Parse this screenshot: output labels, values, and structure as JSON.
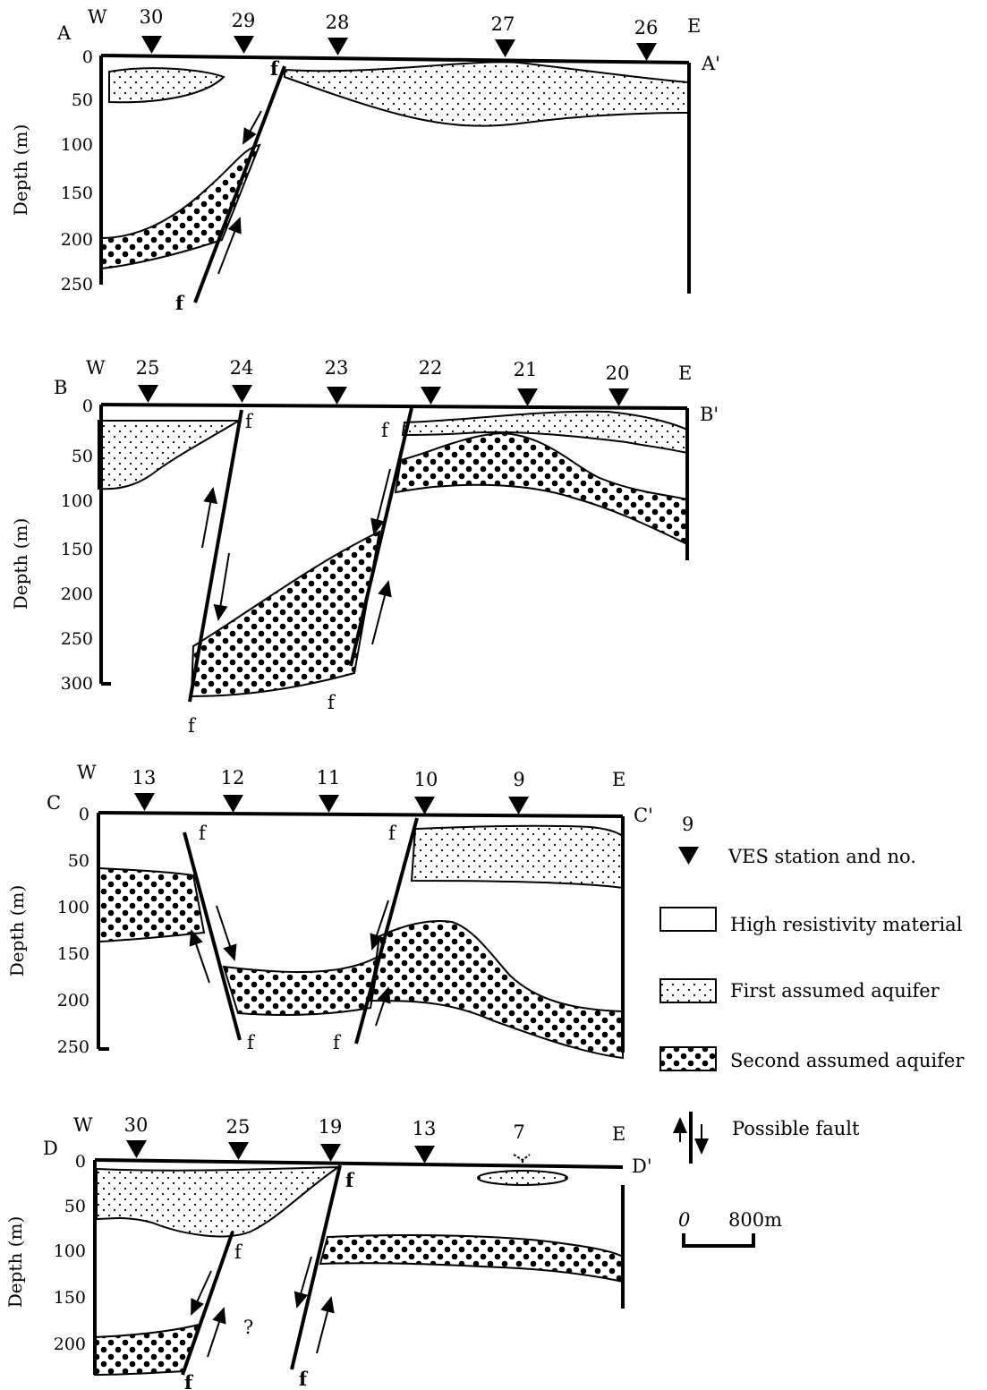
{
  "axis_title": "Depth (m)",
  "panels": {
    "A": {
      "start_label": "A",
      "end_label": "A'",
      "west_label": "W",
      "east_label": "E",
      "stations": [
        "30",
        "29",
        "28",
        "27",
        "26"
      ],
      "depth_ticks": [
        "0",
        "50",
        "100",
        "150",
        "200",
        "250"
      ]
    },
    "B": {
      "start_label": "B",
      "end_label": "B'",
      "west_label": "W",
      "east_label": "E",
      "stations": [
        "25",
        "24",
        "23",
        "22",
        "21",
        "20"
      ],
      "depth_ticks": [
        "0",
        "50",
        "100",
        "150",
        "200",
        "250",
        "300"
      ]
    },
    "C": {
      "start_label": "C",
      "end_label": "C'",
      "west_label": "W",
      "east_label": "E",
      "stations": [
        "13",
        "12",
        "11",
        "10",
        "9"
      ],
      "depth_ticks": [
        "0",
        "50",
        "100",
        "150",
        "200",
        "250"
      ]
    },
    "D": {
      "start_label": "D",
      "end_label": "D'",
      "west_label": "W",
      "east_label": "E",
      "stations": [
        "30",
        "25",
        "19",
        "13",
        "7"
      ],
      "depth_ticks": [
        "0",
        "50",
        "100",
        "150",
        "200"
      ],
      "unknown_mark": "?"
    }
  },
  "fault_label": "f",
  "legend": {
    "station_number": "9",
    "station_label": "VES station and no.",
    "high_resistivity": "High resistivity material",
    "first_aquifer": "First assumed aquifer",
    "second_aquifer": "Second assumed aquifer",
    "possible_fault": "Possible fault",
    "scale_zero": "0",
    "scale_length": "800m"
  }
}
